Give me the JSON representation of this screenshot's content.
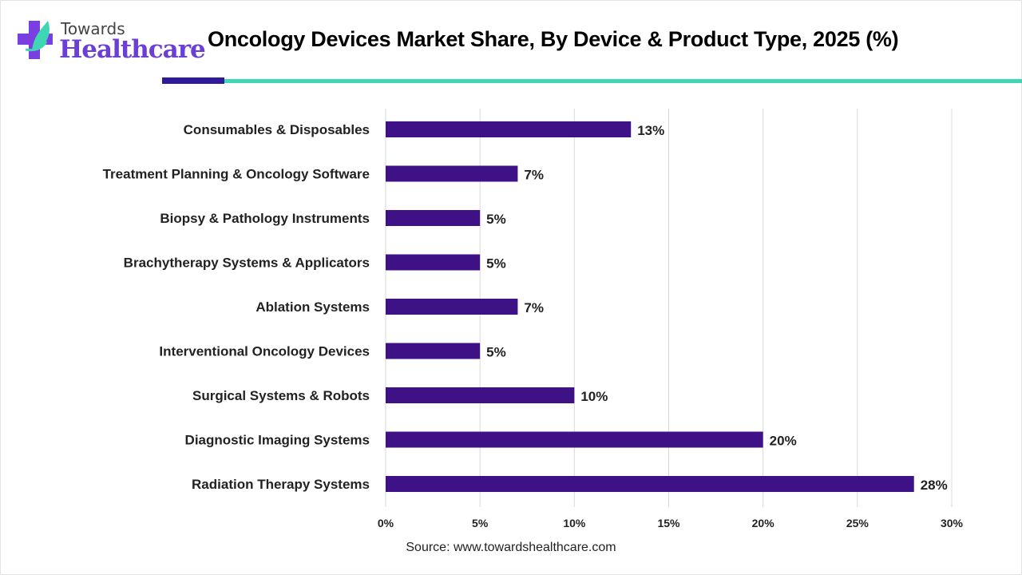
{
  "logo": {
    "line1": "Towards",
    "line2": "Healthcare"
  },
  "title": "Oncology Devices Market Share, By Device & Product Type, 2025 (%)",
  "source": "Source: www.towardshealthcare.com",
  "colors": {
    "bar": "#3f1187",
    "accent_dark": "#2e1a9a",
    "accent_teal": "#3fd6b4",
    "grid": "#d9d9d9"
  },
  "chart_data": {
    "type": "bar",
    "orientation": "horizontal",
    "title": "Oncology Devices Market Share, By Device & Product Type, 2025 (%)",
    "categories": [
      "Consumables & Disposables",
      "Treatment Planning & Oncology Software",
      "Biopsy & Pathology Instruments",
      "Brachytherapy Systems & Applicators",
      "Ablation Systems",
      "Interventional Oncology Devices",
      "Surgical Systems & Robots",
      "Diagnostic Imaging Systems",
      "Radiation Therapy Systems"
    ],
    "values": [
      13,
      7,
      5,
      5,
      7,
      5,
      10,
      20,
      28
    ],
    "data_labels": [
      "13%",
      "7%",
      "5%",
      "5%",
      "7%",
      "5%",
      "10%",
      "20%",
      "28%"
    ],
    "xlim": [
      0,
      30
    ],
    "xticks": [
      0,
      5,
      10,
      15,
      20,
      25,
      30
    ],
    "xtick_labels": [
      "0%",
      "5%",
      "10%",
      "15%",
      "20%",
      "25%",
      "30%"
    ],
    "grid": true,
    "xlabel": "",
    "ylabel": ""
  }
}
